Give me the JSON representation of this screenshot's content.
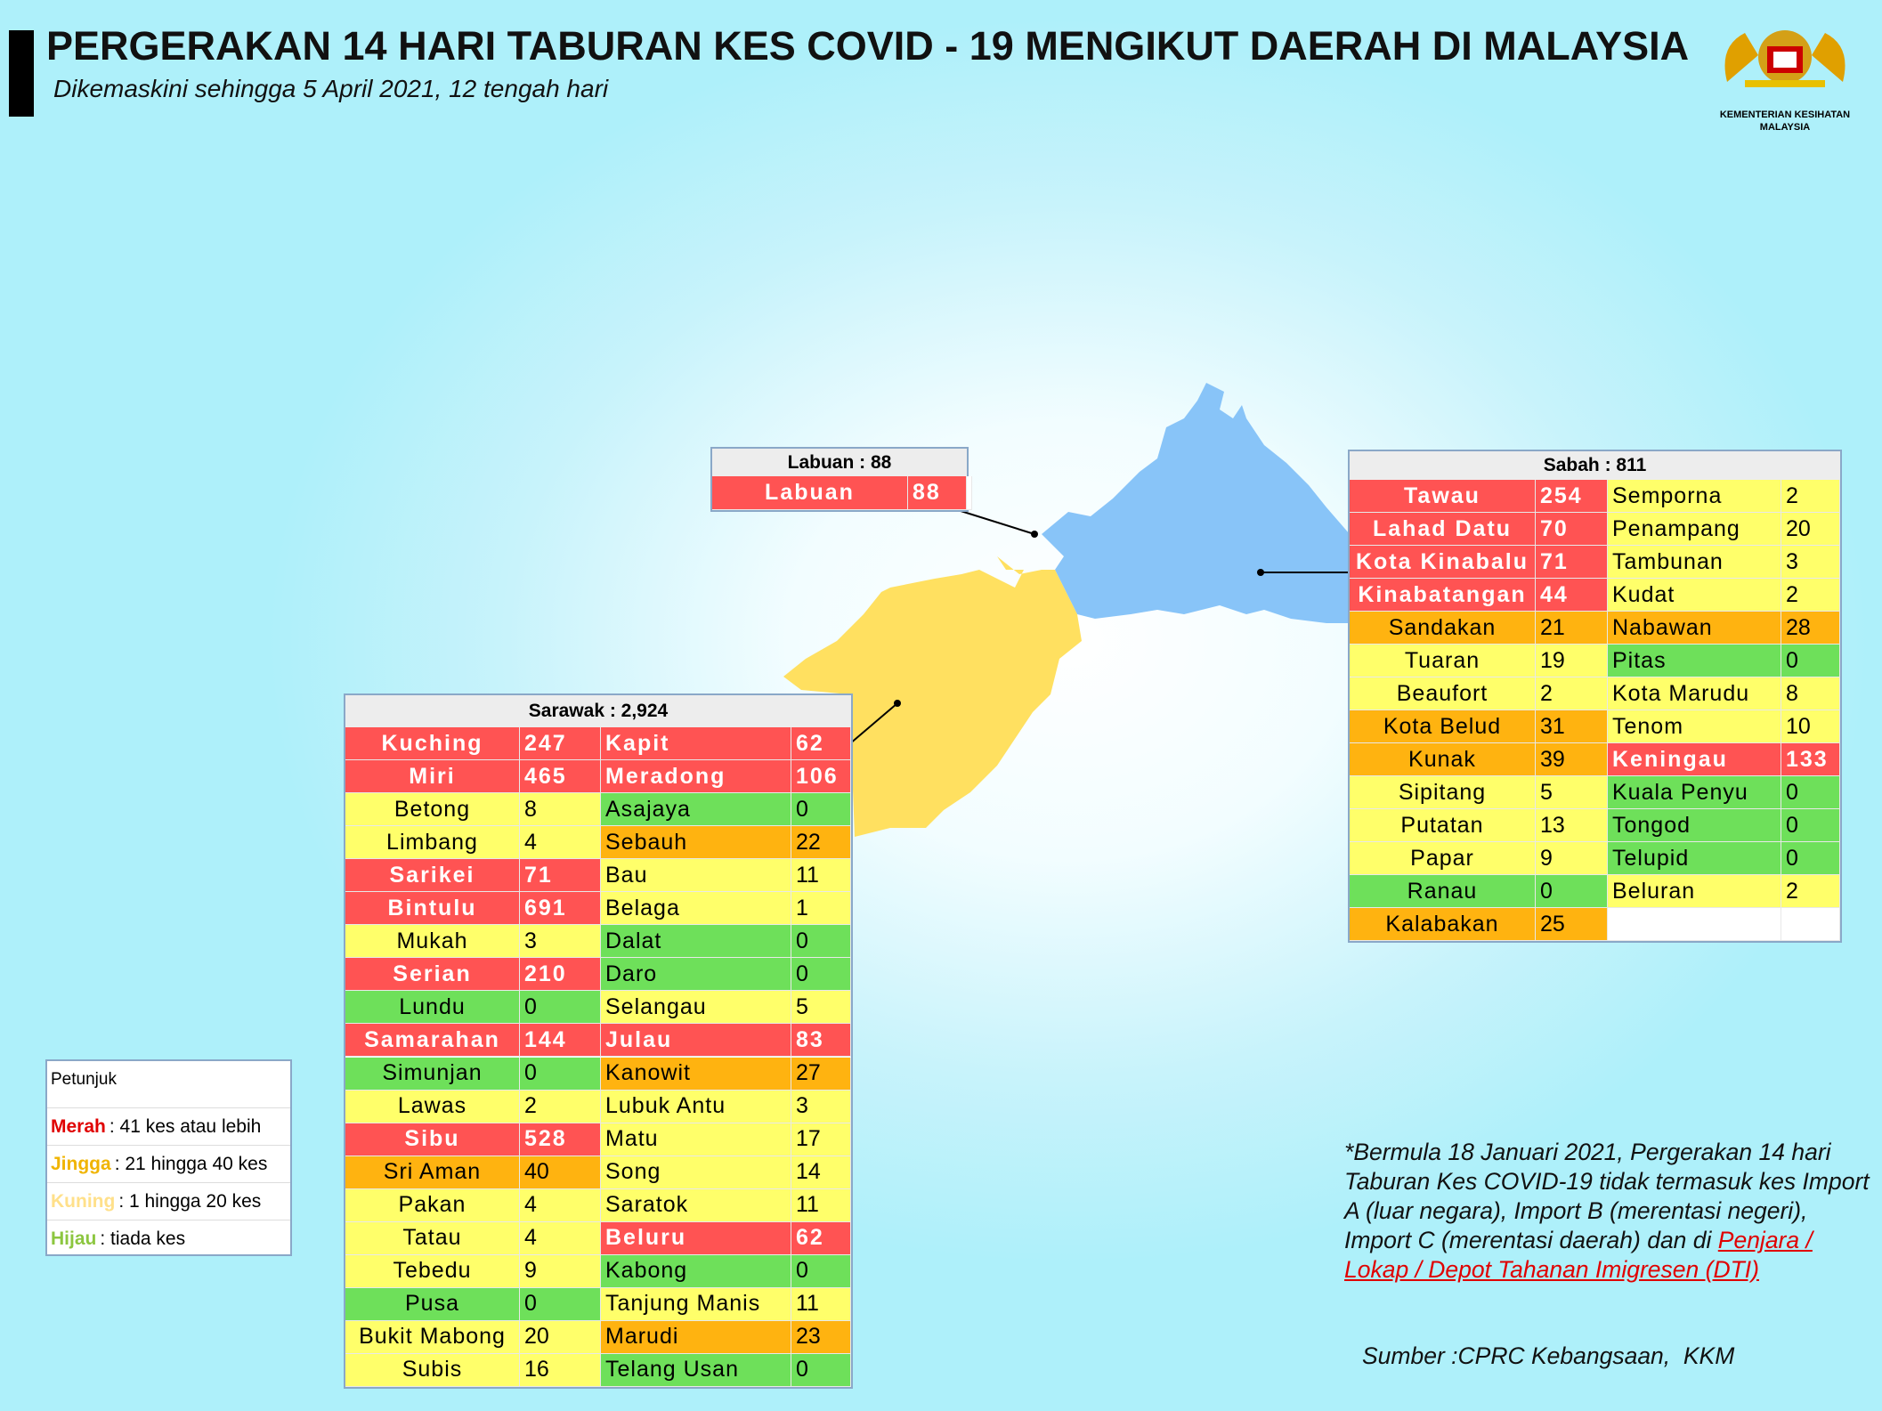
{
  "header": {
    "title": "PERGERAKAN 14 HARI TABURAN KES COVID - 19 MENGIKUT DAERAH DI MALAYSIA",
    "subtitle": "Dikemaskini sehingga 5 April 2021, 12 tengah hari",
    "logo_line1": "KEMENTERIAN KESIHATAN",
    "logo_line2": "MALAYSIA"
  },
  "labuan": {
    "title": "Labuan : 88",
    "left": [
      {
        "district": "Labuan",
        "cases": "88",
        "color": "#ff5353"
      }
    ],
    "right": []
  },
  "sabah": {
    "title": "Sabah : 811",
    "left": [
      {
        "district": "Tawau",
        "cases": "254",
        "color": "#ff5353"
      },
      {
        "district": "Lahad Datu",
        "cases": "70",
        "color": "#ff5353"
      },
      {
        "district": "Kota Kinabalu",
        "cases": "71",
        "color": "#ff5353"
      },
      {
        "district": "Kinabatangan",
        "cases": "44",
        "color": "#ff5353"
      },
      {
        "district": "Sandakan",
        "cases": "21",
        "color": "#ffb310"
      },
      {
        "district": "Tuaran",
        "cases": "19",
        "color": "#ffff6a"
      },
      {
        "district": "Beaufort",
        "cases": "2",
        "color": "#ffff6a"
      },
      {
        "district": "Kota Belud",
        "cases": "31",
        "color": "#ffb310"
      },
      {
        "district": "Kunak",
        "cases": "39",
        "color": "#ffb310"
      },
      {
        "district": "Sipitang",
        "cases": "5",
        "color": "#ffff6a"
      },
      {
        "district": "Putatan",
        "cases": "13",
        "color": "#ffff6a"
      },
      {
        "district": "Papar",
        "cases": "9",
        "color": "#ffff6a"
      },
      {
        "district": "Ranau",
        "cases": "0",
        "color": "#6ee05a"
      },
      {
        "district": "Kalabakan",
        "cases": "25",
        "color": "#ffb310"
      }
    ],
    "right": [
      {
        "district": "Semporna",
        "cases": "2",
        "color": "#ffff6a"
      },
      {
        "district": "Penampang",
        "cases": "20",
        "color": "#ffff6a"
      },
      {
        "district": "Tambunan",
        "cases": "3",
        "color": "#ffff6a"
      },
      {
        "district": "Kudat",
        "cases": "2",
        "color": "#ffff6a"
      },
      {
        "district": "Nabawan",
        "cases": "28",
        "color": "#ffb310"
      },
      {
        "district": "Pitas",
        "cases": "0",
        "color": "#6ee05a"
      },
      {
        "district": "Kota Marudu",
        "cases": "8",
        "color": "#ffff6a"
      },
      {
        "district": "Tenom",
        "cases": "10",
        "color": "#ffff6a"
      },
      {
        "district": "Keningau",
        "cases": "133",
        "color": "#ff5353"
      },
      {
        "district": "Kuala Penyu",
        "cases": "0",
        "color": "#6ee05a"
      },
      {
        "district": "Tongod",
        "cases": "0",
        "color": "#6ee05a"
      },
      {
        "district": "Telupid",
        "cases": "0",
        "color": "#6ee05a"
      },
      {
        "district": "Beluran",
        "cases": "2",
        "color": "#ffff6a"
      }
    ]
  },
  "sarawak": {
    "title": "Sarawak : 2,924",
    "left": [
      {
        "district": "Kuching",
        "cases": "247",
        "color": "#ff5353"
      },
      {
        "district": "Miri",
        "cases": "465",
        "color": "#ff5353"
      },
      {
        "district": "Betong",
        "cases": "8",
        "color": "#ffff6a"
      },
      {
        "district": "Limbang",
        "cases": "4",
        "color": "#ffff6a"
      },
      {
        "district": "Sarikei",
        "cases": "71",
        "color": "#ff5353"
      },
      {
        "district": "Bintulu",
        "cases": "691",
        "color": "#ff5353"
      },
      {
        "district": "Mukah",
        "cases": "3",
        "color": "#ffff6a"
      },
      {
        "district": "Serian",
        "cases": "210",
        "color": "#ff5353"
      },
      {
        "district": "Lundu",
        "cases": "0",
        "color": "#6ee05a"
      },
      {
        "district": "Samarahan",
        "cases": "144",
        "color": "#ff5353"
      },
      {
        "district": "Simunjan",
        "cases": "0",
        "color": "#6ee05a"
      },
      {
        "district": "Lawas",
        "cases": "2",
        "color": "#ffff6a"
      },
      {
        "district": "Sibu",
        "cases": "528",
        "color": "#ff5353"
      },
      {
        "district": "Sri Aman",
        "cases": "40",
        "color": "#ffb310"
      },
      {
        "district": "Pakan",
        "cases": "4",
        "color": "#ffff6a"
      },
      {
        "district": "Tatau",
        "cases": "4",
        "color": "#ffff6a"
      },
      {
        "district": "Tebedu",
        "cases": "9",
        "color": "#ffff6a"
      },
      {
        "district": "Pusa",
        "cases": "0",
        "color": "#6ee05a"
      },
      {
        "district": "Bukit Mabong",
        "cases": "20",
        "color": "#ffff6a"
      },
      {
        "district": "Subis",
        "cases": "16",
        "color": "#ffff6a"
      }
    ],
    "right": [
      {
        "district": "Kapit",
        "cases": "62",
        "color": "#ff5353"
      },
      {
        "district": "Meradong",
        "cases": "106",
        "color": "#ff5353"
      },
      {
        "district": "Asajaya",
        "cases": "0",
        "color": "#6ee05a"
      },
      {
        "district": "Sebauh",
        "cases": "22",
        "color": "#ffb310"
      },
      {
        "district": "Bau",
        "cases": "11",
        "color": "#ffff6a"
      },
      {
        "district": "Belaga",
        "cases": "1",
        "color": "#ffff6a"
      },
      {
        "district": "Dalat",
        "cases": "0",
        "color": "#6ee05a"
      },
      {
        "district": "Daro",
        "cases": "0",
        "color": "#6ee05a"
      },
      {
        "district": "Selangau",
        "cases": "5",
        "color": "#ffff6a"
      },
      {
        "district": "Julau",
        "cases": "83",
        "color": "#ff5353"
      },
      {
        "district": "Kanowit",
        "cases": "27",
        "color": "#ffb310"
      },
      {
        "district": "Lubuk Antu",
        "cases": "3",
        "color": "#ffff6a"
      },
      {
        "district": "Matu",
        "cases": "17",
        "color": "#ffff6a"
      },
      {
        "district": "Song",
        "cases": "14",
        "color": "#ffff6a"
      },
      {
        "district": "Saratok",
        "cases": "11",
        "color": "#ffff6a"
      },
      {
        "district": "Beluru",
        "cases": "62",
        "color": "#ff5353"
      },
      {
        "district": "Kabong",
        "cases": "0",
        "color": "#6ee05a"
      },
      {
        "district": "Tanjung Manis",
        "cases": "11",
        "color": "#ffff6a"
      },
      {
        "district": "Marudi",
        "cases": "23",
        "color": "#ffb310"
      },
      {
        "district": "Telang Usan",
        "cases": "0",
        "color": "#6ee05a"
      }
    ]
  },
  "legend": {
    "title": "Petunjuk",
    "items": [
      {
        "term": "Merah",
        "text": ": 41 kes atau lebih",
        "color": "#e00000"
      },
      {
        "term": "Jingga",
        "text": ": 21 hingga 40 kes",
        "color": "#f0b400"
      },
      {
        "term": "Kuning",
        "text": ": 1 hingga 20 kes",
        "color": "#ffe08a"
      },
      {
        "term": "Hijau",
        "text": ": tiada kes",
        "color": "#8cc63f"
      }
    ]
  },
  "footnote": {
    "text": "*Bermula 18 Januari 2021, Pergerakan 14 hari Taburan Kes COVID-19 tidak termasuk kes Import A (luar negara), Import B (merentasi negeri), Import C (merentasi daerah) dan di ",
    "link": "Penjara / Lokap / Depot Tahanan Imigresen (DTI)"
  },
  "source": "Sumber :CPRC Kebangsaan,  KKM"
}
